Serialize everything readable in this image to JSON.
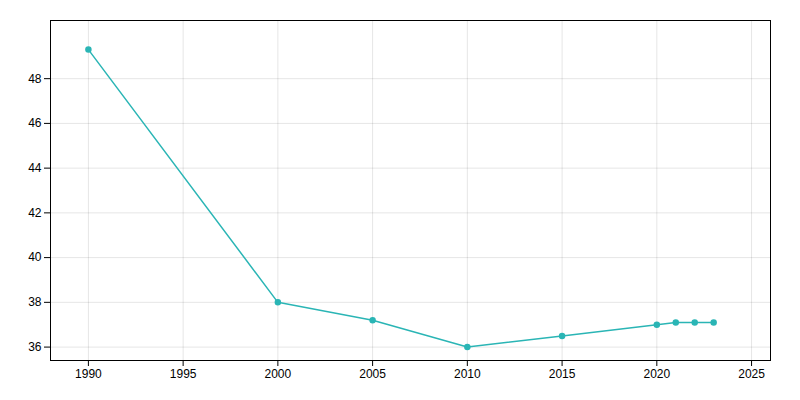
{
  "chart_data": {
    "type": "line",
    "x": [
      1990,
      2000,
      2005,
      2010,
      2015,
      2020,
      2021,
      2022,
      2023
    ],
    "values": [
      49.3,
      38.0,
      37.2,
      36.0,
      36.5,
      37.0,
      37.1,
      37.1,
      37.1
    ],
    "color": "#2ab5b5",
    "marker": "circle",
    "xlim": [
      1988,
      2026
    ],
    "ylim": [
      35.4,
      50.6
    ],
    "xticks": [
      1990,
      1995,
      2000,
      2005,
      2010,
      2015,
      2020,
      2025
    ],
    "yticks": [
      36,
      38,
      40,
      42,
      44,
      46,
      48
    ],
    "grid": true
  }
}
